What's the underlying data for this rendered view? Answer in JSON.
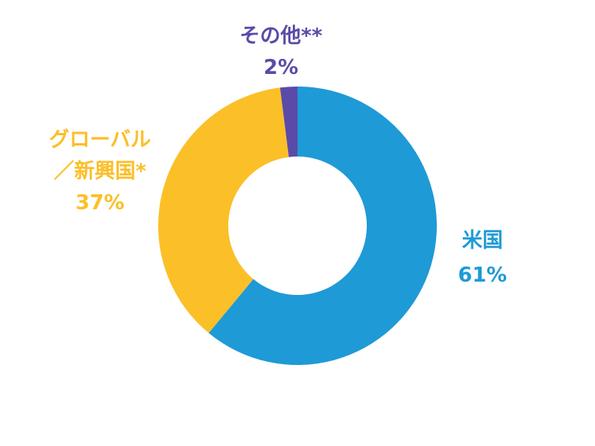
{
  "chart_data": {
    "type": "pie",
    "variant": "donut",
    "title": "",
    "slices": [
      {
        "label": "米国",
        "value": 61,
        "value_label": "61%",
        "color": "#1e9ad6"
      },
      {
        "label": "グローバル／新興国*",
        "label_lines": [
          "グローバル",
          "／新興国*"
        ],
        "value": 37,
        "value_label": "37%",
        "color": "#fbbf28"
      },
      {
        "label": "その他**",
        "value": 2,
        "value_label": "2%",
        "color": "#5b4ba8"
      }
    ]
  }
}
